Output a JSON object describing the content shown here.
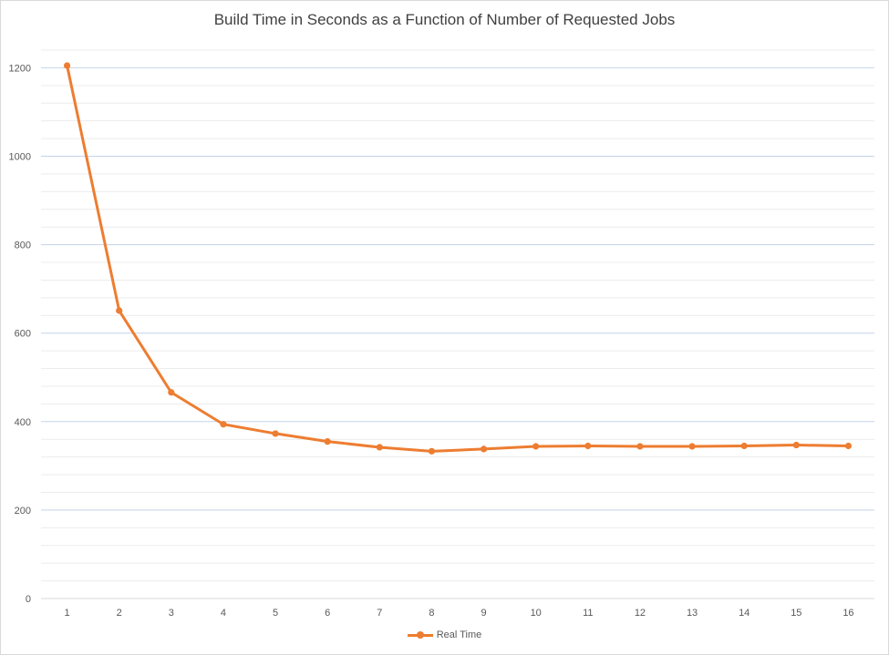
{
  "chart_data": {
    "type": "line",
    "title": "Build Time in Seconds as a Function of Number of Requested Jobs",
    "xlabel": "",
    "ylabel": "",
    "categories": [
      "1",
      "2",
      "3",
      "4",
      "5",
      "6",
      "7",
      "8",
      "9",
      "10",
      "11",
      "12",
      "13",
      "14",
      "15",
      "16"
    ],
    "series": [
      {
        "name": "Real Time",
        "color": "#ED7D31",
        "values": [
          1205,
          651,
          466,
          394,
          373,
          355,
          342,
          333,
          338,
          344,
          345,
          344,
          344,
          345,
          347,
          345
        ]
      }
    ],
    "ylim": [
      0,
      1200
    ],
    "yticks": [
      "0",
      "200",
      "400",
      "600",
      "800",
      "1000",
      "1200"
    ],
    "grid": true,
    "legend_position": "bottom",
    "colors": {
      "major_grid": "#c5d3e8",
      "minor_grid": "#ececec",
      "axis": "#d9d9d9"
    }
  }
}
